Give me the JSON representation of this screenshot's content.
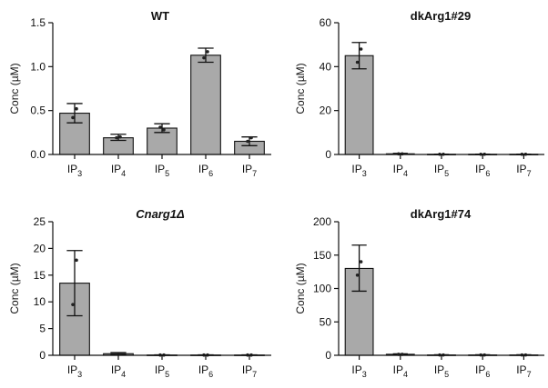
{
  "chart_data": [
    {
      "type": "bar",
      "title": "WT",
      "title_style": "bold",
      "ylabel": "Conc (µM)",
      "ylim": [
        0,
        1.5
      ],
      "yticks": [
        "0.0",
        "0.5",
        "1.0",
        "1.5"
      ],
      "ytick_values": [
        0,
        0.5,
        1.0,
        1.5
      ],
      "categories": [
        {
          "base": "IP",
          "sub": "3"
        },
        {
          "base": "IP",
          "sub": "4"
        },
        {
          "base": "IP",
          "sub": "5"
        },
        {
          "base": "IP",
          "sub": "6"
        },
        {
          "base": "IP",
          "sub": "7"
        }
      ],
      "values": [
        0.47,
        0.19,
        0.3,
        1.13,
        0.15
      ],
      "error_low": [
        0.36,
        0.16,
        0.25,
        1.05,
        0.1
      ],
      "error_high": [
        0.58,
        0.23,
        0.35,
        1.21,
        0.2
      ],
      "points": [
        [
          0.42,
          0.52
        ],
        [
          0.19,
          0.2
        ],
        [
          0.31,
          0.28
        ],
        [
          1.1,
          1.17
        ],
        [
          0.15,
          0.19
        ]
      ]
    },
    {
      "type": "bar",
      "title": "dkArg1#29",
      "title_style": "bold",
      "ylabel": "Conc (µM)",
      "ylim": [
        0,
        60
      ],
      "yticks": [
        "0",
        "20",
        "40",
        "60"
      ],
      "ytick_values": [
        0,
        20,
        40,
        60
      ],
      "categories": [
        {
          "base": "IP",
          "sub": "3"
        },
        {
          "base": "IP",
          "sub": "4"
        },
        {
          "base": "IP",
          "sub": "5"
        },
        {
          "base": "IP",
          "sub": "6"
        },
        {
          "base": "IP",
          "sub": "7"
        }
      ],
      "values": [
        45,
        0.3,
        0.1,
        0.1,
        0.1
      ],
      "error_low": [
        39,
        0.1,
        0.05,
        0.05,
        0.05
      ],
      "error_high": [
        51,
        0.5,
        0.15,
        0.15,
        0.15
      ],
      "points": [
        [
          42,
          48
        ],
        [
          0.3,
          0.3
        ],
        [
          0.1,
          0.1
        ],
        [
          0.1,
          0.1
        ],
        [
          0.1,
          0.1
        ]
      ]
    },
    {
      "type": "bar",
      "title": "Cnarg1Δ",
      "title_style": "bold-italic",
      "ylabel": "Conc (µM)",
      "ylim": [
        0,
        25
      ],
      "yticks": [
        "0",
        "5",
        "10",
        "15",
        "20",
        "25"
      ],
      "ytick_values": [
        0,
        5,
        10,
        15,
        20,
        25
      ],
      "categories": [
        {
          "base": "IP",
          "sub": "3"
        },
        {
          "base": "IP",
          "sub": "4"
        },
        {
          "base": "IP",
          "sub": "5"
        },
        {
          "base": "IP",
          "sub": "6"
        },
        {
          "base": "IP",
          "sub": "7"
        }
      ],
      "values": [
        13.5,
        0.3,
        0.05,
        0.05,
        0.05
      ],
      "error_low": [
        7.4,
        0.1,
        0.02,
        0.02,
        0.02
      ],
      "error_high": [
        19.6,
        0.5,
        0.08,
        0.08,
        0.08
      ],
      "points": [
        [
          9.5,
          17.8
        ],
        [
          0.3,
          0.3
        ],
        [
          0.05,
          0.05
        ],
        [
          0.05,
          0.05
        ],
        [
          0.05,
          0.05
        ]
      ]
    },
    {
      "type": "bar",
      "title": "dkArg1#74",
      "title_style": "bold",
      "ylabel": "Conc (µM)",
      "ylim": [
        0,
        200
      ],
      "yticks": [
        "0",
        "50",
        "100",
        "150",
        "200"
      ],
      "ytick_values": [
        0,
        50,
        100,
        150,
        200
      ],
      "categories": [
        {
          "base": "IP",
          "sub": "3"
        },
        {
          "base": "IP",
          "sub": "4"
        },
        {
          "base": "IP",
          "sub": "5"
        },
        {
          "base": "IP",
          "sub": "6"
        },
        {
          "base": "IP",
          "sub": "7"
        }
      ],
      "values": [
        130,
        1.5,
        0.5,
        0.5,
        0.5
      ],
      "error_low": [
        96,
        0.8,
        0.2,
        0.2,
        0.2
      ],
      "error_high": [
        165,
        2.2,
        0.8,
        0.8,
        0.8
      ],
      "points": [
        [
          120,
          140
        ],
        [
          1.5,
          1.5
        ],
        [
          0.5,
          0.5
        ],
        [
          0.5,
          0.5
        ],
        [
          0.5,
          0.5
        ]
      ]
    }
  ]
}
